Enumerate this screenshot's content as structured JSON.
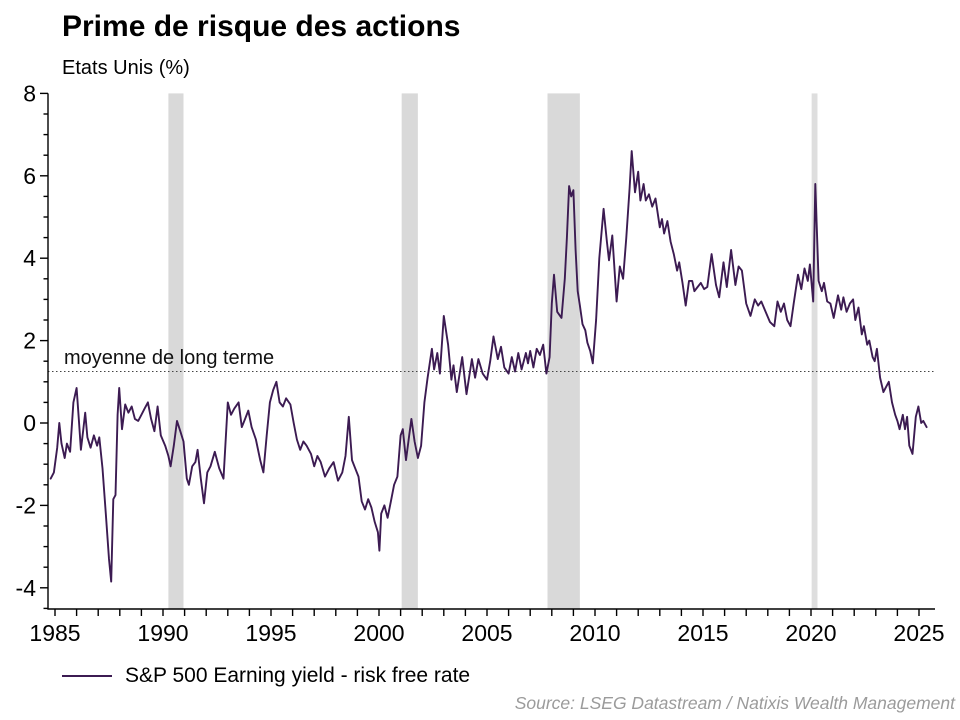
{
  "header": {
    "title": "Prime de risque des actions",
    "subtitle": "Etats Unis (%)"
  },
  "legend": {
    "label": "S&P 500 Earning yield - risk free rate"
  },
  "source": {
    "text": "Source: LSEG Datastream / Natixis Wealth Management"
  },
  "chart_data": {
    "type": "line",
    "title": "Prime de risque des actions",
    "subtitle": "Etats Unis (%)",
    "xlim": [
      1984.8,
      2025.75
    ],
    "ylim": [
      -4.5,
      8
    ],
    "grid": false,
    "legend_position": "bottom-left",
    "x_tick_values": [
      1985,
      1990,
      1995,
      2000,
      2005,
      2010,
      2015,
      2020,
      2025
    ],
    "x_tick_labels": [
      "1985",
      "1990",
      "1995",
      "2000",
      "2005",
      "2010",
      "2015",
      "2020",
      "2025"
    ],
    "x_minor_tick_step_years": 1,
    "y_tick_values": [
      8,
      6,
      4,
      2,
      0,
      -2,
      -4
    ],
    "y_tick_labels": [
      "8",
      "6",
      "4",
      "2",
      "0",
      "-2",
      "-4"
    ],
    "y_minor_tick_step": 0.5,
    "mean_line": {
      "value": 1.25,
      "label": "moyenne de long terme",
      "style": "dotted",
      "color": "#444444"
    },
    "band_color": "#d9d9d9",
    "recession_bands": [
      {
        "from": 1990.25,
        "to": 1990.95,
        "color": "#d9d9d9"
      },
      {
        "from": 2001.05,
        "to": 2001.8,
        "color": "#d9d9d9"
      },
      {
        "from": 2007.8,
        "to": 2009.3,
        "color": "#d9d9d9"
      },
      {
        "from": 2020.03,
        "to": 2020.3,
        "color": "#dedede"
      }
    ],
    "series": [
      {
        "name": "S&P 500 Earning yield - risk free rate",
        "color": "#3c1b52",
        "points": [
          [
            1984.8,
            -1.35
          ],
          [
            1984.95,
            -1.2
          ],
          [
            1985.1,
            -0.6
          ],
          [
            1985.2,
            0.0
          ],
          [
            1985.3,
            -0.5
          ],
          [
            1985.45,
            -0.85
          ],
          [
            1985.55,
            -0.5
          ],
          [
            1985.7,
            -0.7
          ],
          [
            1985.85,
            0.5
          ],
          [
            1986.0,
            0.85
          ],
          [
            1986.1,
            0.1
          ],
          [
            1986.2,
            -0.65
          ],
          [
            1986.3,
            -0.2
          ],
          [
            1986.4,
            0.25
          ],
          [
            1986.5,
            -0.35
          ],
          [
            1986.65,
            -0.6
          ],
          [
            1986.8,
            -0.3
          ],
          [
            1986.95,
            -0.55
          ],
          [
            1987.05,
            -0.35
          ],
          [
            1987.2,
            -1.1
          ],
          [
            1987.35,
            -2.2
          ],
          [
            1987.5,
            -3.3
          ],
          [
            1987.6,
            -3.85
          ],
          [
            1987.7,
            -1.85
          ],
          [
            1987.8,
            -1.75
          ],
          [
            1987.9,
            0.2
          ],
          [
            1987.97,
            0.85
          ],
          [
            1988.1,
            -0.15
          ],
          [
            1988.25,
            0.45
          ],
          [
            1988.4,
            0.25
          ],
          [
            1988.55,
            0.4
          ],
          [
            1988.7,
            0.1
          ],
          [
            1988.85,
            0.05
          ],
          [
            1989.0,
            0.2
          ],
          [
            1989.15,
            0.35
          ],
          [
            1989.3,
            0.5
          ],
          [
            1989.45,
            0.1
          ],
          [
            1989.6,
            -0.2
          ],
          [
            1989.75,
            0.4
          ],
          [
            1989.9,
            -0.3
          ],
          [
            1990.1,
            -0.55
          ],
          [
            1990.25,
            -0.8
          ],
          [
            1990.35,
            -1.05
          ],
          [
            1990.5,
            -0.55
          ],
          [
            1990.65,
            0.05
          ],
          [
            1990.8,
            -0.2
          ],
          [
            1990.95,
            -0.45
          ],
          [
            1991.1,
            -1.35
          ],
          [
            1991.2,
            -1.5
          ],
          [
            1991.35,
            -1.05
          ],
          [
            1991.5,
            -0.95
          ],
          [
            1991.6,
            -0.65
          ],
          [
            1991.75,
            -1.35
          ],
          [
            1991.9,
            -1.95
          ],
          [
            1992.05,
            -1.2
          ],
          [
            1992.2,
            -1.05
          ],
          [
            1992.4,
            -0.7
          ],
          [
            1992.6,
            -1.1
          ],
          [
            1992.8,
            -1.35
          ],
          [
            1993.0,
            0.5
          ],
          [
            1993.15,
            0.2
          ],
          [
            1993.3,
            0.35
          ],
          [
            1993.5,
            0.5
          ],
          [
            1993.65,
            -0.1
          ],
          [
            1993.8,
            0.1
          ],
          [
            1993.95,
            0.3
          ],
          [
            1994.1,
            -0.1
          ],
          [
            1994.3,
            -0.4
          ],
          [
            1994.5,
            -0.9
          ],
          [
            1994.65,
            -1.2
          ],
          [
            1994.8,
            -0.3
          ],
          [
            1994.95,
            0.5
          ],
          [
            1995.1,
            0.8
          ],
          [
            1995.25,
            1.0
          ],
          [
            1995.4,
            0.5
          ],
          [
            1995.55,
            0.4
          ],
          [
            1995.7,
            0.6
          ],
          [
            1995.9,
            0.45
          ],
          [
            1996.05,
            0.0
          ],
          [
            1996.2,
            -0.4
          ],
          [
            1996.35,
            -0.65
          ],
          [
            1996.5,
            -0.45
          ],
          [
            1996.65,
            -0.55
          ],
          [
            1996.85,
            -0.75
          ],
          [
            1997.0,
            -1.05
          ],
          [
            1997.15,
            -0.8
          ],
          [
            1997.3,
            -0.95
          ],
          [
            1997.5,
            -1.3
          ],
          [
            1997.7,
            -1.1
          ],
          [
            1997.9,
            -0.95
          ],
          [
            1998.1,
            -1.4
          ],
          [
            1998.3,
            -1.2
          ],
          [
            1998.45,
            -0.8
          ],
          [
            1998.6,
            0.15
          ],
          [
            1998.75,
            -0.9
          ],
          [
            1998.9,
            -1.1
          ],
          [
            1999.05,
            -1.3
          ],
          [
            1999.2,
            -1.9
          ],
          [
            1999.35,
            -2.1
          ],
          [
            1999.5,
            -1.85
          ],
          [
            1999.65,
            -2.05
          ],
          [
            1999.8,
            -2.4
          ],
          [
            1999.95,
            -2.65
          ],
          [
            2000.02,
            -3.1
          ],
          [
            2000.1,
            -2.2
          ],
          [
            2000.25,
            -2.0
          ],
          [
            2000.4,
            -2.3
          ],
          [
            2000.55,
            -1.9
          ],
          [
            2000.7,
            -1.5
          ],
          [
            2000.85,
            -1.3
          ],
          [
            2001.0,
            -0.3
          ],
          [
            2001.1,
            -0.15
          ],
          [
            2001.25,
            -0.9
          ],
          [
            2001.4,
            -0.3
          ],
          [
            2001.5,
            0.1
          ],
          [
            2001.65,
            -0.45
          ],
          [
            2001.8,
            -0.85
          ],
          [
            2001.95,
            -0.55
          ],
          [
            2002.1,
            0.5
          ],
          [
            2002.25,
            1.1
          ],
          [
            2002.45,
            1.8
          ],
          [
            2002.55,
            1.3
          ],
          [
            2002.7,
            1.7
          ],
          [
            2002.82,
            1.2
          ],
          [
            2003.0,
            2.6
          ],
          [
            2003.2,
            1.9
          ],
          [
            2003.35,
            1.05
          ],
          [
            2003.45,
            1.4
          ],
          [
            2003.6,
            0.75
          ],
          [
            2003.85,
            1.6
          ],
          [
            2004.05,
            0.7
          ],
          [
            2004.3,
            1.55
          ],
          [
            2004.45,
            1.1
          ],
          [
            2004.6,
            1.55
          ],
          [
            2004.8,
            1.2
          ],
          [
            2005.0,
            1.05
          ],
          [
            2005.15,
            1.5
          ],
          [
            2005.3,
            2.1
          ],
          [
            2005.5,
            1.55
          ],
          [
            2005.65,
            1.85
          ],
          [
            2005.8,
            1.35
          ],
          [
            2006.0,
            1.2
          ],
          [
            2006.15,
            1.6
          ],
          [
            2006.3,
            1.25
          ],
          [
            2006.45,
            1.7
          ],
          [
            2006.6,
            1.3
          ],
          [
            2006.8,
            1.7
          ],
          [
            2006.9,
            1.45
          ],
          [
            2007.0,
            1.75
          ],
          [
            2007.15,
            1.35
          ],
          [
            2007.3,
            1.8
          ],
          [
            2007.45,
            1.65
          ],
          [
            2007.6,
            1.9
          ],
          [
            2007.75,
            1.2
          ],
          [
            2007.9,
            1.6
          ],
          [
            2008.0,
            2.9
          ],
          [
            2008.1,
            3.6
          ],
          [
            2008.25,
            2.7
          ],
          [
            2008.45,
            2.55
          ],
          [
            2008.6,
            3.5
          ],
          [
            2008.7,
            4.5
          ],
          [
            2008.8,
            5.75
          ],
          [
            2008.9,
            5.5
          ],
          [
            2009.0,
            5.65
          ],
          [
            2009.1,
            4.2
          ],
          [
            2009.2,
            3.2
          ],
          [
            2009.3,
            2.85
          ],
          [
            2009.42,
            2.4
          ],
          [
            2009.55,
            2.25
          ],
          [
            2009.65,
            1.95
          ],
          [
            2009.78,
            1.75
          ],
          [
            2009.9,
            1.45
          ],
          [
            2010.05,
            2.5
          ],
          [
            2010.2,
            4.0
          ],
          [
            2010.4,
            5.2
          ],
          [
            2010.55,
            4.4
          ],
          [
            2010.65,
            3.95
          ],
          [
            2010.8,
            4.55
          ],
          [
            2011.0,
            2.95
          ],
          [
            2011.15,
            3.8
          ],
          [
            2011.3,
            3.5
          ],
          [
            2011.45,
            4.5
          ],
          [
            2011.6,
            5.7
          ],
          [
            2011.7,
            6.6
          ],
          [
            2011.85,
            5.6
          ],
          [
            2012.0,
            6.1
          ],
          [
            2012.1,
            5.4
          ],
          [
            2012.25,
            5.8
          ],
          [
            2012.35,
            5.4
          ],
          [
            2012.5,
            5.55
          ],
          [
            2012.65,
            5.25
          ],
          [
            2012.8,
            5.45
          ],
          [
            2013.0,
            4.75
          ],
          [
            2013.1,
            4.95
          ],
          [
            2013.2,
            4.6
          ],
          [
            2013.35,
            4.9
          ],
          [
            2013.5,
            4.4
          ],
          [
            2013.65,
            4.1
          ],
          [
            2013.8,
            3.7
          ],
          [
            2013.9,
            3.9
          ],
          [
            2014.05,
            3.4
          ],
          [
            2014.2,
            2.85
          ],
          [
            2014.35,
            3.45
          ],
          [
            2014.5,
            3.45
          ],
          [
            2014.6,
            3.2
          ],
          [
            2014.75,
            3.3
          ],
          [
            2014.9,
            3.4
          ],
          [
            2015.05,
            3.25
          ],
          [
            2015.2,
            3.3
          ],
          [
            2015.4,
            4.1
          ],
          [
            2015.6,
            3.35
          ],
          [
            2015.75,
            3.05
          ],
          [
            2015.95,
            3.9
          ],
          [
            2016.1,
            3.3
          ],
          [
            2016.3,
            4.2
          ],
          [
            2016.5,
            3.35
          ],
          [
            2016.65,
            3.8
          ],
          [
            2016.8,
            3.7
          ],
          [
            2017.0,
            2.9
          ],
          [
            2017.2,
            2.6
          ],
          [
            2017.4,
            3.0
          ],
          [
            2017.55,
            2.85
          ],
          [
            2017.7,
            2.95
          ],
          [
            2017.9,
            2.7
          ],
          [
            2018.1,
            2.45
          ],
          [
            2018.3,
            2.35
          ],
          [
            2018.45,
            2.95
          ],
          [
            2018.6,
            2.7
          ],
          [
            2018.75,
            2.9
          ],
          [
            2018.9,
            2.5
          ],
          [
            2019.05,
            2.35
          ],
          [
            2019.2,
            2.9
          ],
          [
            2019.4,
            3.6
          ],
          [
            2019.55,
            3.25
          ],
          [
            2019.7,
            3.75
          ],
          [
            2019.85,
            3.45
          ],
          [
            2019.95,
            3.85
          ],
          [
            2020.1,
            2.95
          ],
          [
            2020.2,
            5.8
          ],
          [
            2020.35,
            3.45
          ],
          [
            2020.5,
            3.2
          ],
          [
            2020.6,
            3.4
          ],
          [
            2020.75,
            2.95
          ],
          [
            2020.9,
            2.9
          ],
          [
            2021.05,
            2.55
          ],
          [
            2021.25,
            3.1
          ],
          [
            2021.4,
            2.75
          ],
          [
            2021.5,
            3.05
          ],
          [
            2021.65,
            2.7
          ],
          [
            2021.8,
            2.9
          ],
          [
            2021.95,
            3.0
          ],
          [
            2022.05,
            2.5
          ],
          [
            2022.2,
            2.8
          ],
          [
            2022.35,
            2.15
          ],
          [
            2022.45,
            2.35
          ],
          [
            2022.6,
            1.9
          ],
          [
            2022.7,
            2.0
          ],
          [
            2022.85,
            1.6
          ],
          [
            2022.95,
            1.5
          ],
          [
            2023.05,
            1.8
          ],
          [
            2023.2,
            1.1
          ],
          [
            2023.35,
            0.75
          ],
          [
            2023.5,
            0.9
          ],
          [
            2023.6,
            1.0
          ],
          [
            2023.75,
            0.5
          ],
          [
            2023.9,
            0.2
          ],
          [
            2024.0,
            0.05
          ],
          [
            2024.1,
            -0.15
          ],
          [
            2024.25,
            0.2
          ],
          [
            2024.35,
            -0.15
          ],
          [
            2024.45,
            0.15
          ],
          [
            2024.55,
            -0.55
          ],
          [
            2024.7,
            -0.75
          ],
          [
            2024.85,
            0.15
          ],
          [
            2024.97,
            0.4
          ],
          [
            2025.1,
            0.0
          ],
          [
            2025.2,
            0.05
          ],
          [
            2025.35,
            -0.1
          ]
        ]
      }
    ]
  }
}
